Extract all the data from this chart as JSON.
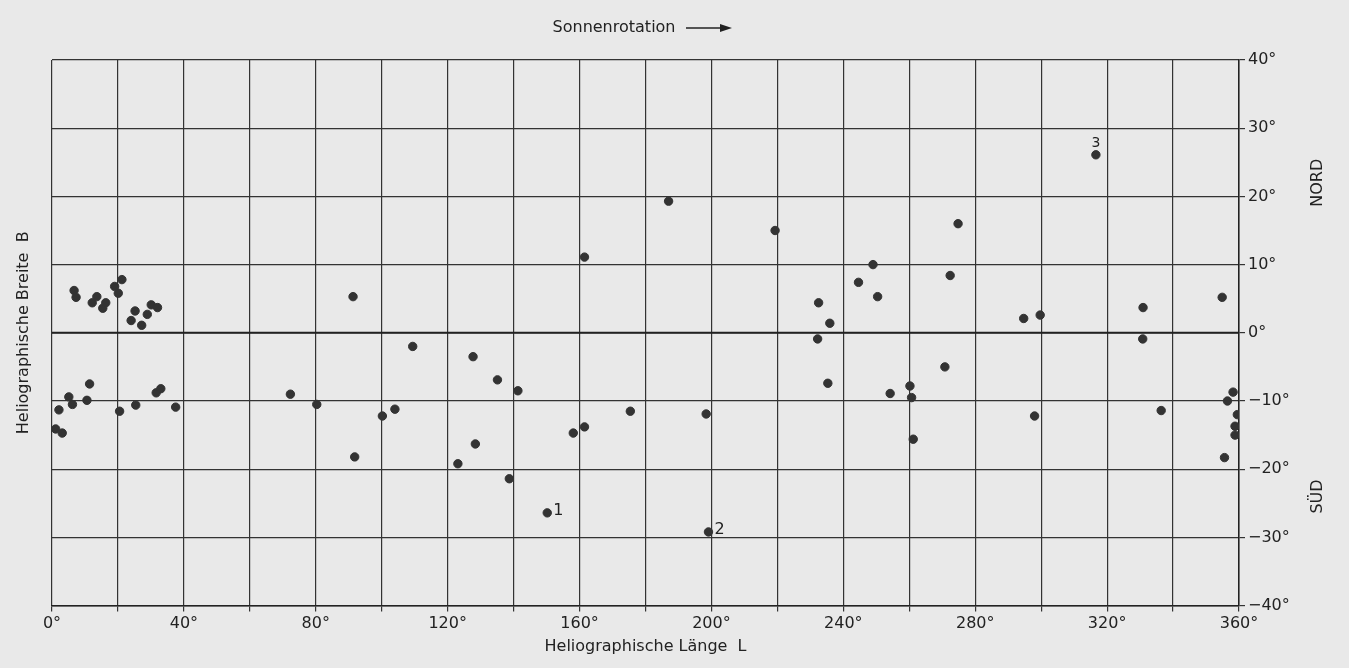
{
  "chart_data": {
    "type": "scatter",
    "xlabel": "Heliographische Länge  L",
    "ylabel": "Heliographische Breite  B",
    "annotations": [
      "Sonnenrotation",
      "NORD",
      "SÜD",
      {
        "text": "1",
        "x": 150.2,
        "y": -26.4
      },
      {
        "text": "2",
        "x": 199.1,
        "y": -29.2
      },
      {
        "text": "3",
        "x": 316.6,
        "y": 26.1
      }
    ],
    "series": [
      {
        "color": "#333333",
        "x": [
          6.7,
          7.3,
          12.2,
          13.6,
          15.4,
          16.3,
          19.0,
          20.1,
          21.2,
          24.0,
          25.2,
          27.2,
          28.9,
          30.1,
          32.0,
          2.1,
          1.1,
          3.1,
          5.1,
          6.2,
          10.6,
          11.4,
          20.5,
          25.4,
          31.6,
          33.0,
          37.5,
          72.3,
          80.3,
          91.3,
          109.4,
          100.2,
          104.0,
          91.8,
          127.7,
          135.1,
          141.3,
          128.4,
          123.1,
          138.7,
          150.2,
          158.1,
          161.5,
          175.4,
          161.5,
          187.0,
          219.3,
          249.0,
          244.6,
          250.4,
          232.5,
          235.9,
          232.2,
          274.8,
          272.4,
          294.7,
          299.7,
          270.8,
          235.3,
          254.2,
          260.2,
          260.7,
          261.2,
          298.0,
          198.4,
          199.1,
          316.6,
          330.9,
          330.8,
          354.9,
          336.4,
          358.2,
          356.5,
          359.5,
          358.8,
          358.8,
          355.6
        ],
        "values": [
          6.2,
          5.2,
          4.4,
          5.3,
          3.6,
          4.4,
          6.8,
          5.8,
          7.8,
          1.8,
          3.2,
          1.1,
          2.7,
          4.1,
          3.7,
          -11.3,
          -14.1,
          -14.7,
          -9.4,
          -10.5,
          -9.9,
          -7.5,
          -11.5,
          -10.6,
          -8.8,
          -8.2,
          -10.9,
          -9.0,
          -10.5,
          5.3,
          -2.0,
          -12.2,
          -11.2,
          -18.2,
          -3.5,
          -6.9,
          -8.5,
          -16.3,
          -19.2,
          -21.4,
          -26.4,
          -14.7,
          -13.8,
          -11.5,
          11.1,
          19.3,
          15.0,
          10.0,
          7.4,
          5.3,
          4.4,
          1.4,
          -0.9,
          16.0,
          8.4,
          2.1,
          2.6,
          -5.0,
          -7.4,
          -8.9,
          -7.8,
          -9.5,
          -15.6,
          -12.2,
          -11.9,
          -29.2,
          26.1,
          3.7,
          -0.9,
          5.2,
          -11.4,
          -8.7,
          -10.0,
          -12.0,
          -13.7,
          -15.0,
          -18.3
        ]
      }
    ],
    "xlim": [
      0,
      360
    ],
    "xticks": [
      {
        "value": 0,
        "label": "0°"
      },
      {
        "value": 20,
        "label": null
      },
      {
        "value": 40,
        "label": "40°"
      },
      {
        "value": 60,
        "label": null
      },
      {
        "value": 80,
        "label": "80°"
      },
      {
        "value": 100,
        "label": null
      },
      {
        "value": 120,
        "label": "120°"
      },
      {
        "value": 140,
        "label": null
      },
      {
        "value": 160,
        "label": "160°"
      },
      {
        "value": 180,
        "label": null
      },
      {
        "value": 200,
        "label": "200°"
      },
      {
        "value": 220,
        "label": null
      },
      {
        "value": 240,
        "label": "240°"
      },
      {
        "value": 260,
        "label": null
      },
      {
        "value": 280,
        "label": "280°"
      },
      {
        "value": 300,
        "label": null
      },
      {
        "value": 320,
        "label": "320°"
      },
      {
        "value": 340,
        "label": null
      },
      {
        "value": 360,
        "label": "360°"
      }
    ],
    "ylim": [
      -40,
      40
    ],
    "yticks": [
      {
        "value": -40,
        "label": "−40°"
      },
      {
        "value": -30,
        "label": "−30°"
      },
      {
        "value": -20,
        "label": "−20°"
      },
      {
        "value": -10,
        "label": "−10°"
      },
      {
        "value": 0,
        "label": "0°"
      },
      {
        "value": 10,
        "label": "10°"
      },
      {
        "value": 20,
        "label": "20°"
      },
      {
        "value": 30,
        "label": "30°"
      },
      {
        "value": 40,
        "label": "40°"
      }
    ],
    "grid": true,
    "legend": false,
    "marker": "circle"
  }
}
